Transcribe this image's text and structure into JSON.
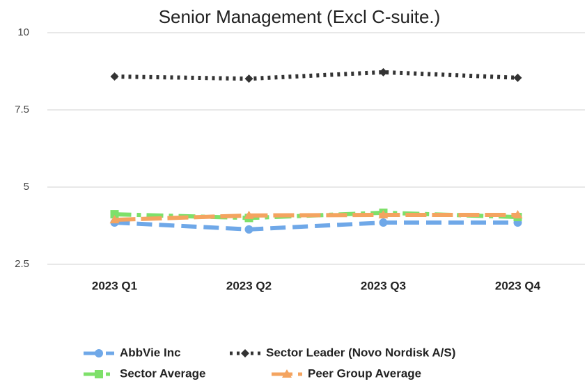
{
  "chart_data": {
    "type": "line",
    "title": "Senior Management (Excl C-suite.)",
    "categories": [
      "2023 Q1",
      "2023 Q2",
      "2023 Q3",
      "2023 Q4"
    ],
    "series": [
      {
        "name": "AbbVie Inc",
        "color": "#6fa8e8",
        "marker": "circle",
        "dash": "22 10",
        "values": [
          3.85,
          3.63,
          3.85,
          3.85
        ]
      },
      {
        "name": "Sector Leader (Novo Nordisk A/S)",
        "color": "#333333",
        "marker": "diamond",
        "dash": "4 6",
        "values": [
          8.58,
          8.51,
          8.72,
          8.54
        ]
      },
      {
        "name": "Sector Average",
        "color": "#7ee06a",
        "marker": "square",
        "dash": "24 8 6 8",
        "values": [
          4.12,
          4.0,
          4.17,
          4.03
        ]
      },
      {
        "name": "Peer Group Average",
        "color": "#f4a460",
        "marker": "triangle",
        "dash": "30 8",
        "values": [
          3.94,
          4.08,
          4.1,
          4.1
        ]
      }
    ],
    "ylim": [
      2.5,
      10
    ],
    "yticks": [
      2.5,
      5,
      7.5,
      10
    ],
    "grid": true,
    "legend": "bottom"
  }
}
